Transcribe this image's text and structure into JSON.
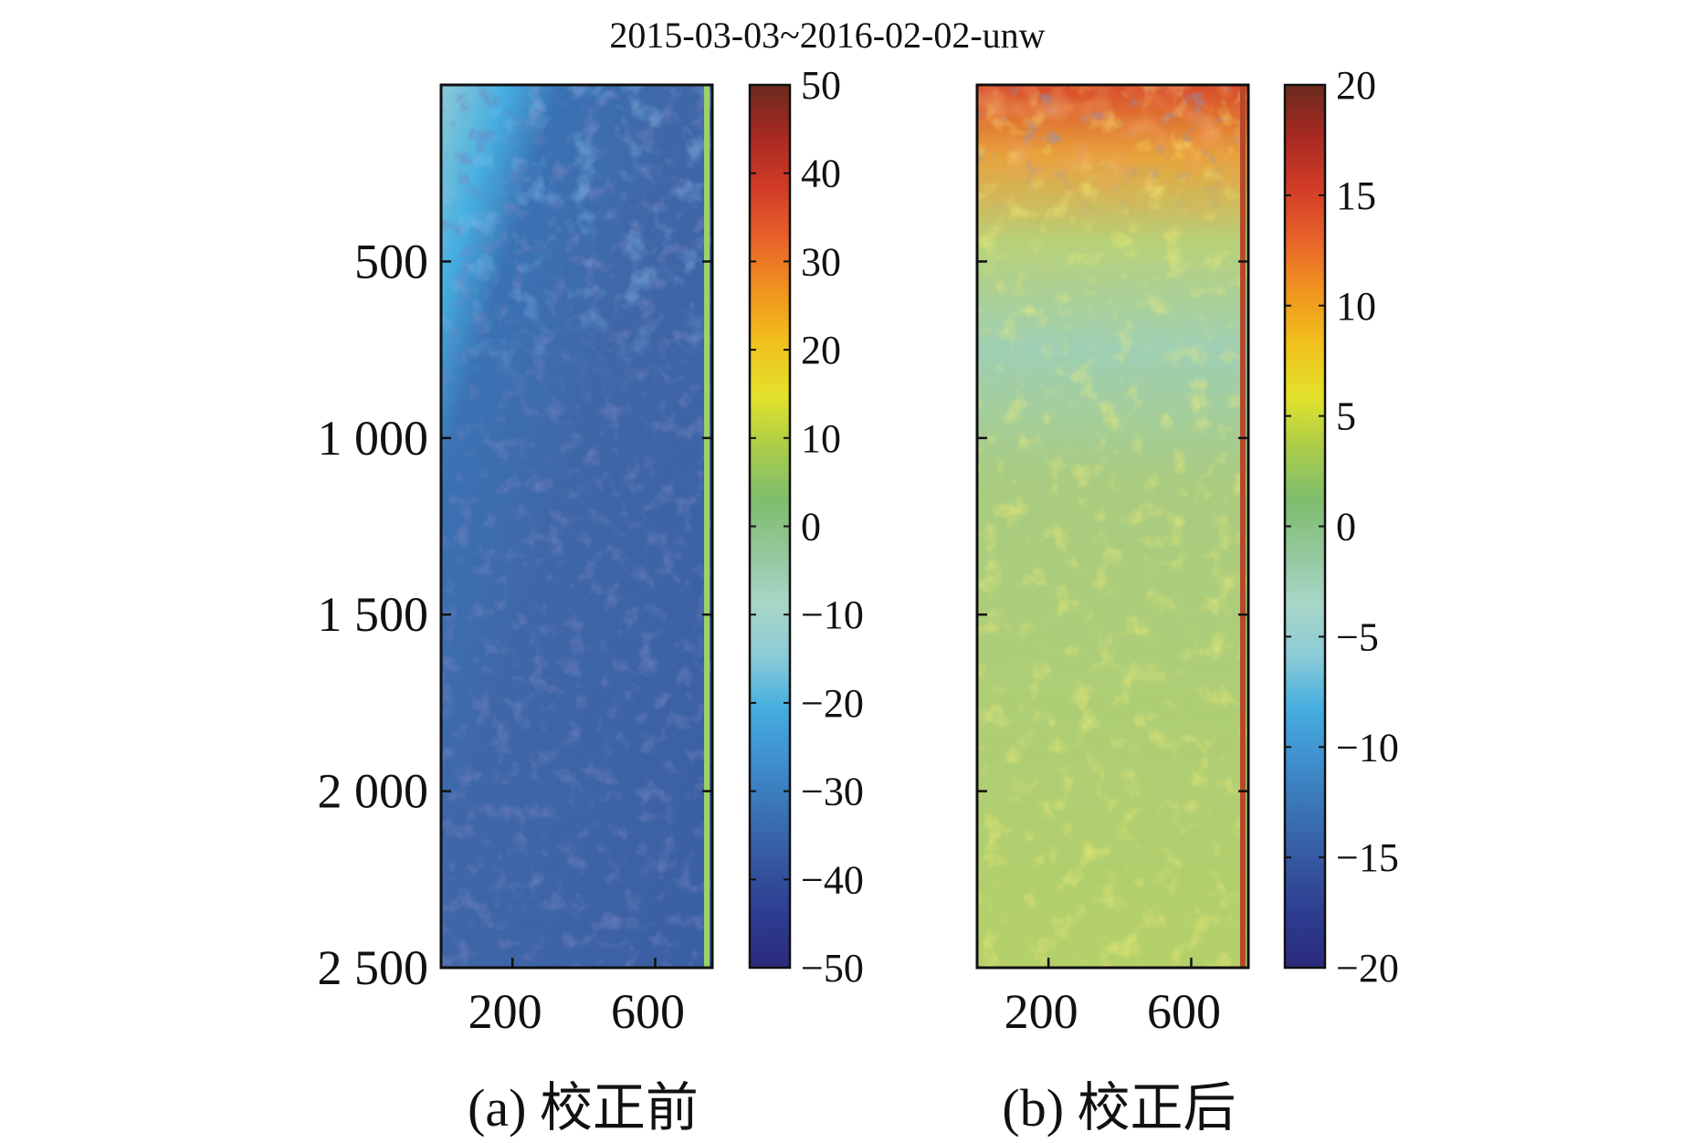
{
  "figure": {
    "title": "2015-03-03~2016-02-02-unw"
  },
  "colormap": [
    "#2b2a7c",
    "#2d3c8f",
    "#3556a0",
    "#3a72b4",
    "#3f8fce",
    "#46aee0",
    "#8ccbd6",
    "#a8d6c8",
    "#93c79b",
    "#7fbd6e",
    "#a9cc4a",
    "#e3e22c",
    "#f1c21e",
    "#f0951e",
    "#e8642a",
    "#d23c27",
    "#a82a22",
    "#6b2a1d"
  ],
  "chart_data": [
    {
      "type": "heatmap",
      "panel": "a",
      "caption": "(a) 校正前",
      "x_ticks": [
        200,
        600
      ],
      "y_ticks": [
        500,
        1000,
        1500,
        2000,
        2500
      ],
      "y_tick_labels": [
        "500",
        "1 000",
        "1 500",
        "2 000",
        "2 500"
      ],
      "x_range": [
        0,
        760
      ],
      "y_range": [
        0,
        2500
      ],
      "colorbar": {
        "ticks": [
          50,
          40,
          30,
          20,
          10,
          0,
          -10,
          -20,
          -30,
          -40,
          -50
        ],
        "tick_labels": [
          "50",
          "40",
          "30",
          "20",
          "10",
          "0",
          "−10",
          "−20",
          "−30",
          "−40",
          "−50"
        ],
        "range": [
          -50,
          50
        ]
      }
    },
    {
      "type": "heatmap",
      "panel": "b",
      "caption": "(b) 校正后",
      "x_ticks": [
        200,
        600
      ],
      "x_range": [
        0,
        760
      ],
      "y_range": [
        0,
        2500
      ],
      "y_ticks": [
        500,
        1000,
        1500,
        2000,
        2500
      ],
      "colorbar": {
        "ticks": [
          20,
          15,
          10,
          5,
          0,
          -5,
          -10,
          -15,
          -20
        ],
        "tick_labels": [
          "20",
          "15",
          "10",
          "5",
          "0",
          "−5",
          "−10",
          "−15",
          "−20"
        ],
        "range": [
          -20,
          20
        ]
      }
    }
  ]
}
